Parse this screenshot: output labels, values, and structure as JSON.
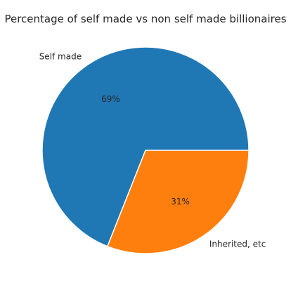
{
  "chart_data": {
    "type": "pie",
    "title": "Percentage of self made vs non self made billionaires",
    "labels": [
      "Self made",
      "Inherited, etc"
    ],
    "values": [
      69,
      31
    ],
    "percent_labels": [
      "69%",
      "31%"
    ],
    "colors": [
      "#1f77b4",
      "#ff7f0e"
    ],
    "start_angle_deg": 0,
    "direction": "counterclockwise",
    "legend": "none"
  }
}
